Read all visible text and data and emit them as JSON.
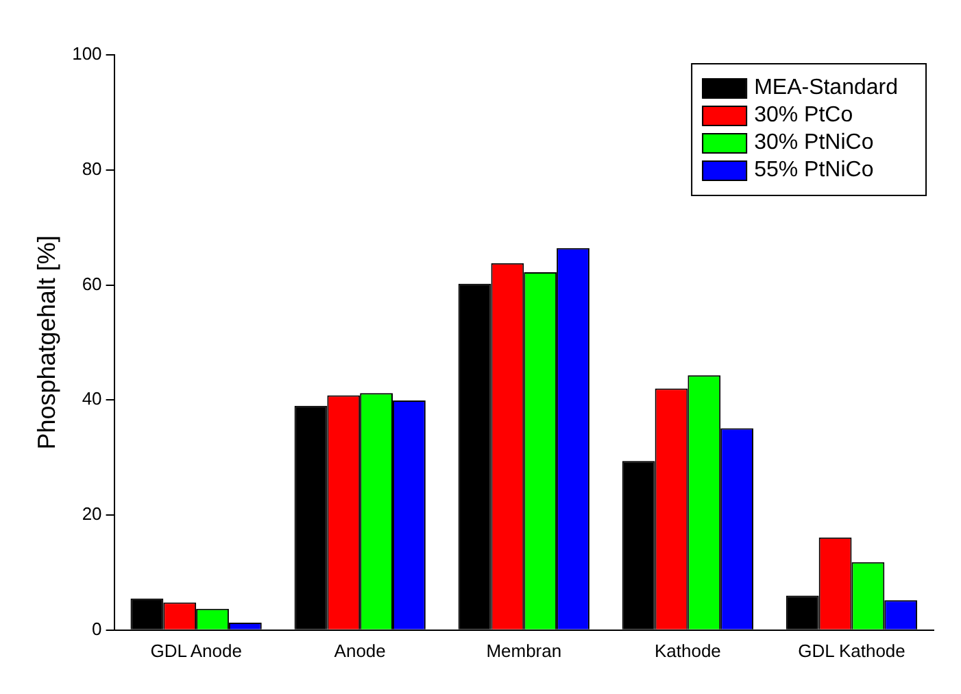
{
  "chart_data": {
    "type": "bar",
    "ylabel": "Phosphatgehalt [%]",
    "categories": [
      "GDL Anode",
      "Anode",
      "Membran",
      "Kathode",
      "GDL Kathode"
    ],
    "series": [
      {
        "name": "MEA-Standard",
        "color": "#000000",
        "values": [
          5.5,
          39,
          60.2,
          29.4,
          6
        ]
      },
      {
        "name": "30% PtCo",
        "color": "#ff0000",
        "values": [
          4.8,
          40.8,
          63.8,
          42,
          16.1
        ]
      },
      {
        "name": "30% PtNiCo",
        "color": "#00ff00",
        "values": [
          3.7,
          41.2,
          62.2,
          44.3,
          11.8
        ]
      },
      {
        "name": "55% PtNiCo",
        "color": "#0000ff",
        "values": [
          1.3,
          39.9,
          66.4,
          35.1,
          5.2
        ]
      }
    ],
    "ylim": [
      0,
      100
    ],
    "yticks": [
      0,
      20,
      40,
      60,
      80,
      100
    ],
    "grid": false,
    "legend": "top right"
  }
}
